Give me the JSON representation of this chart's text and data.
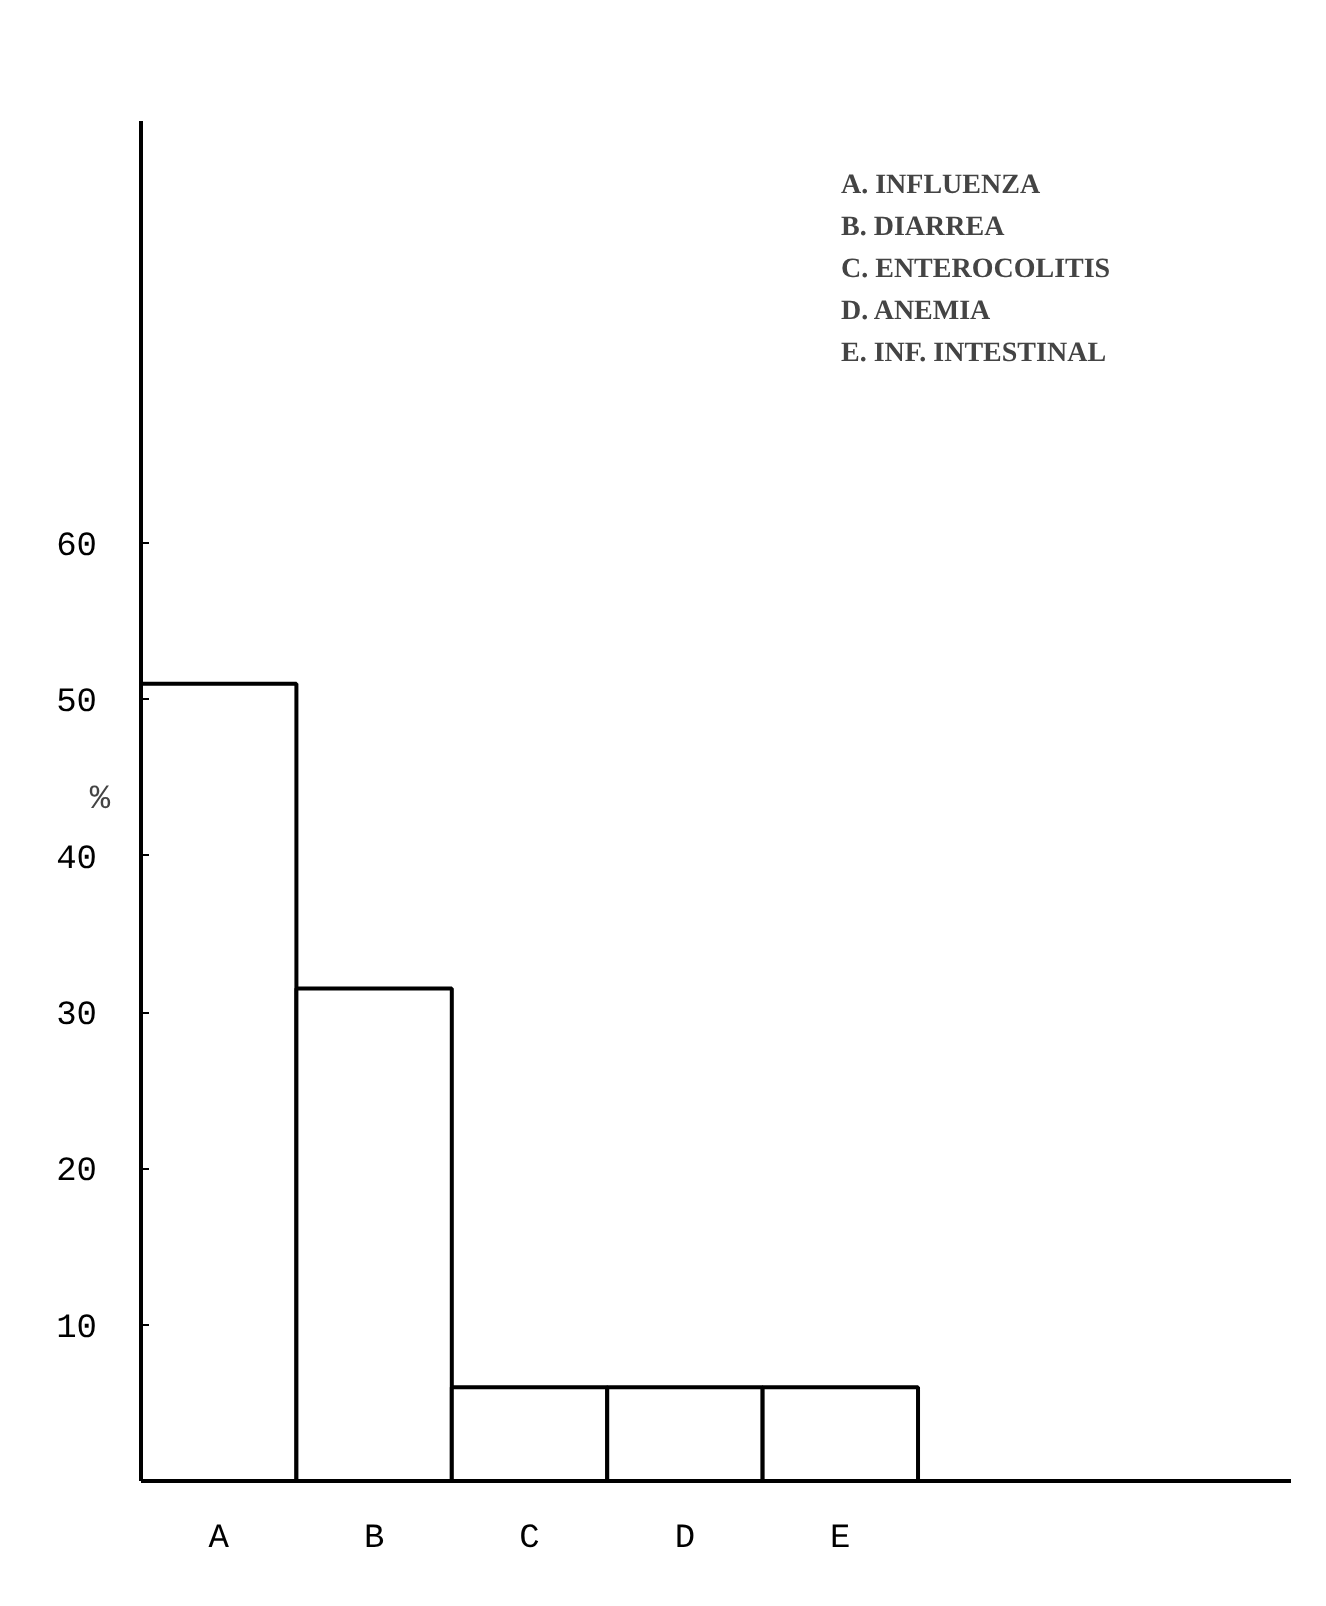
{
  "chart_data": {
    "type": "bar",
    "ylabel": "%",
    "categories": [
      "A",
      "B",
      "C",
      "D",
      "E"
    ],
    "values": [
      51,
      31.5,
      6,
      6,
      6
    ],
    "color": "#ffffff",
    "ylim": [
      0,
      87
    ],
    "yticks": [
      10,
      20,
      30,
      40,
      50,
      60
    ],
    "grid": false,
    "annotations": [
      "A.  INFLUENZA",
      "B.  DIARREA",
      "C.  ENTEROCOLITIS",
      "D.  ANEMIA",
      "E.  INF.  INTESTINAL"
    ]
  }
}
